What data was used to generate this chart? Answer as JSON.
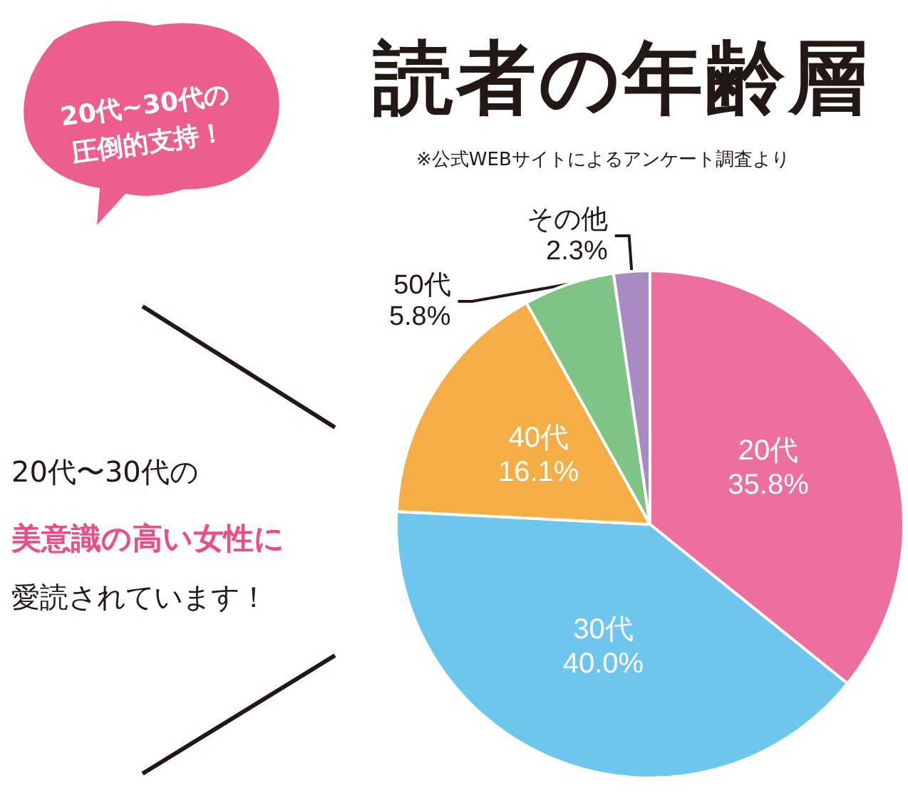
{
  "chart_data": {
    "type": "pie",
    "title": "読者の年齢層",
    "categories": [
      "20代",
      "30代",
      "40代",
      "50代",
      "その他"
    ],
    "values": [
      35.8,
      40.0,
      16.1,
      5.8,
      2.3
    ],
    "value_labels": [
      "35.8%",
      "40.0%",
      "16.1%",
      "5.8%",
      "2.3%"
    ],
    "colors": [
      "#ec6fa0",
      "#6ec6ef",
      "#f5ae45",
      "#7fc485",
      "#a98bc4"
    ],
    "legend": false,
    "annotations": [
      "※公式WEBサイトによるアンケート調査より",
      "20代~30代の",
      "圧倒的支持！",
      "20代〜30代の",
      "美意識の高い女性に",
      "愛読されています！"
    ]
  }
}
